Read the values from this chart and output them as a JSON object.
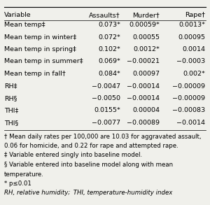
{
  "headers": [
    "Variable",
    "Assaults†",
    "Murder†",
    "Rape†"
  ],
  "rows": [
    [
      "Mean temp‡",
      "0.073*",
      "0.00059*",
      "0.0013*"
    ],
    [
      "Mean temp in winter‡",
      "0.072*",
      "0.00055",
      "0.00095"
    ],
    [
      "Mean temp in spring‡",
      "0.102*",
      "0.0012*",
      "0.0014"
    ],
    [
      "Mean temp in summer‡",
      "0.069*",
      "−0.00021",
      "−0.0003"
    ],
    [
      "Mean temp in fall†",
      "0.084*",
      "0.00097",
      "0.002*"
    ],
    [
      "RH‡",
      "−0.0047",
      "−0.00014",
      "−0.00009"
    ],
    [
      "RH§",
      "−0.0050",
      "−0.00014",
      "−0.00009"
    ],
    [
      "THI‡",
      "0.0155*",
      "0.00004",
      "−0.00083"
    ],
    [
      "THI§",
      "−0.0077",
      "−0.00089",
      "−0.0014"
    ]
  ],
  "footnotes": [
    [
      "† Mean daily rates per 100,000 are 10.03 for aggravated assault,",
      false
    ],
    [
      "0.06 for homicide, and 0.22 for rape and attempted rape.",
      false
    ],
    [
      "‡ Variable entered singly into baseline model.",
      false
    ],
    [
      "§ Variable entered into baseline model along with mean",
      false
    ],
    [
      "temperature.",
      false
    ],
    [
      "* p≤0.01",
      false
    ],
    [
      "RH, relative humidity;  THI, temperature-humidity index",
      true
    ]
  ],
  "bg_color": "#f0f0eb",
  "font_size": 6.8,
  "footnote_font_size": 6.2
}
